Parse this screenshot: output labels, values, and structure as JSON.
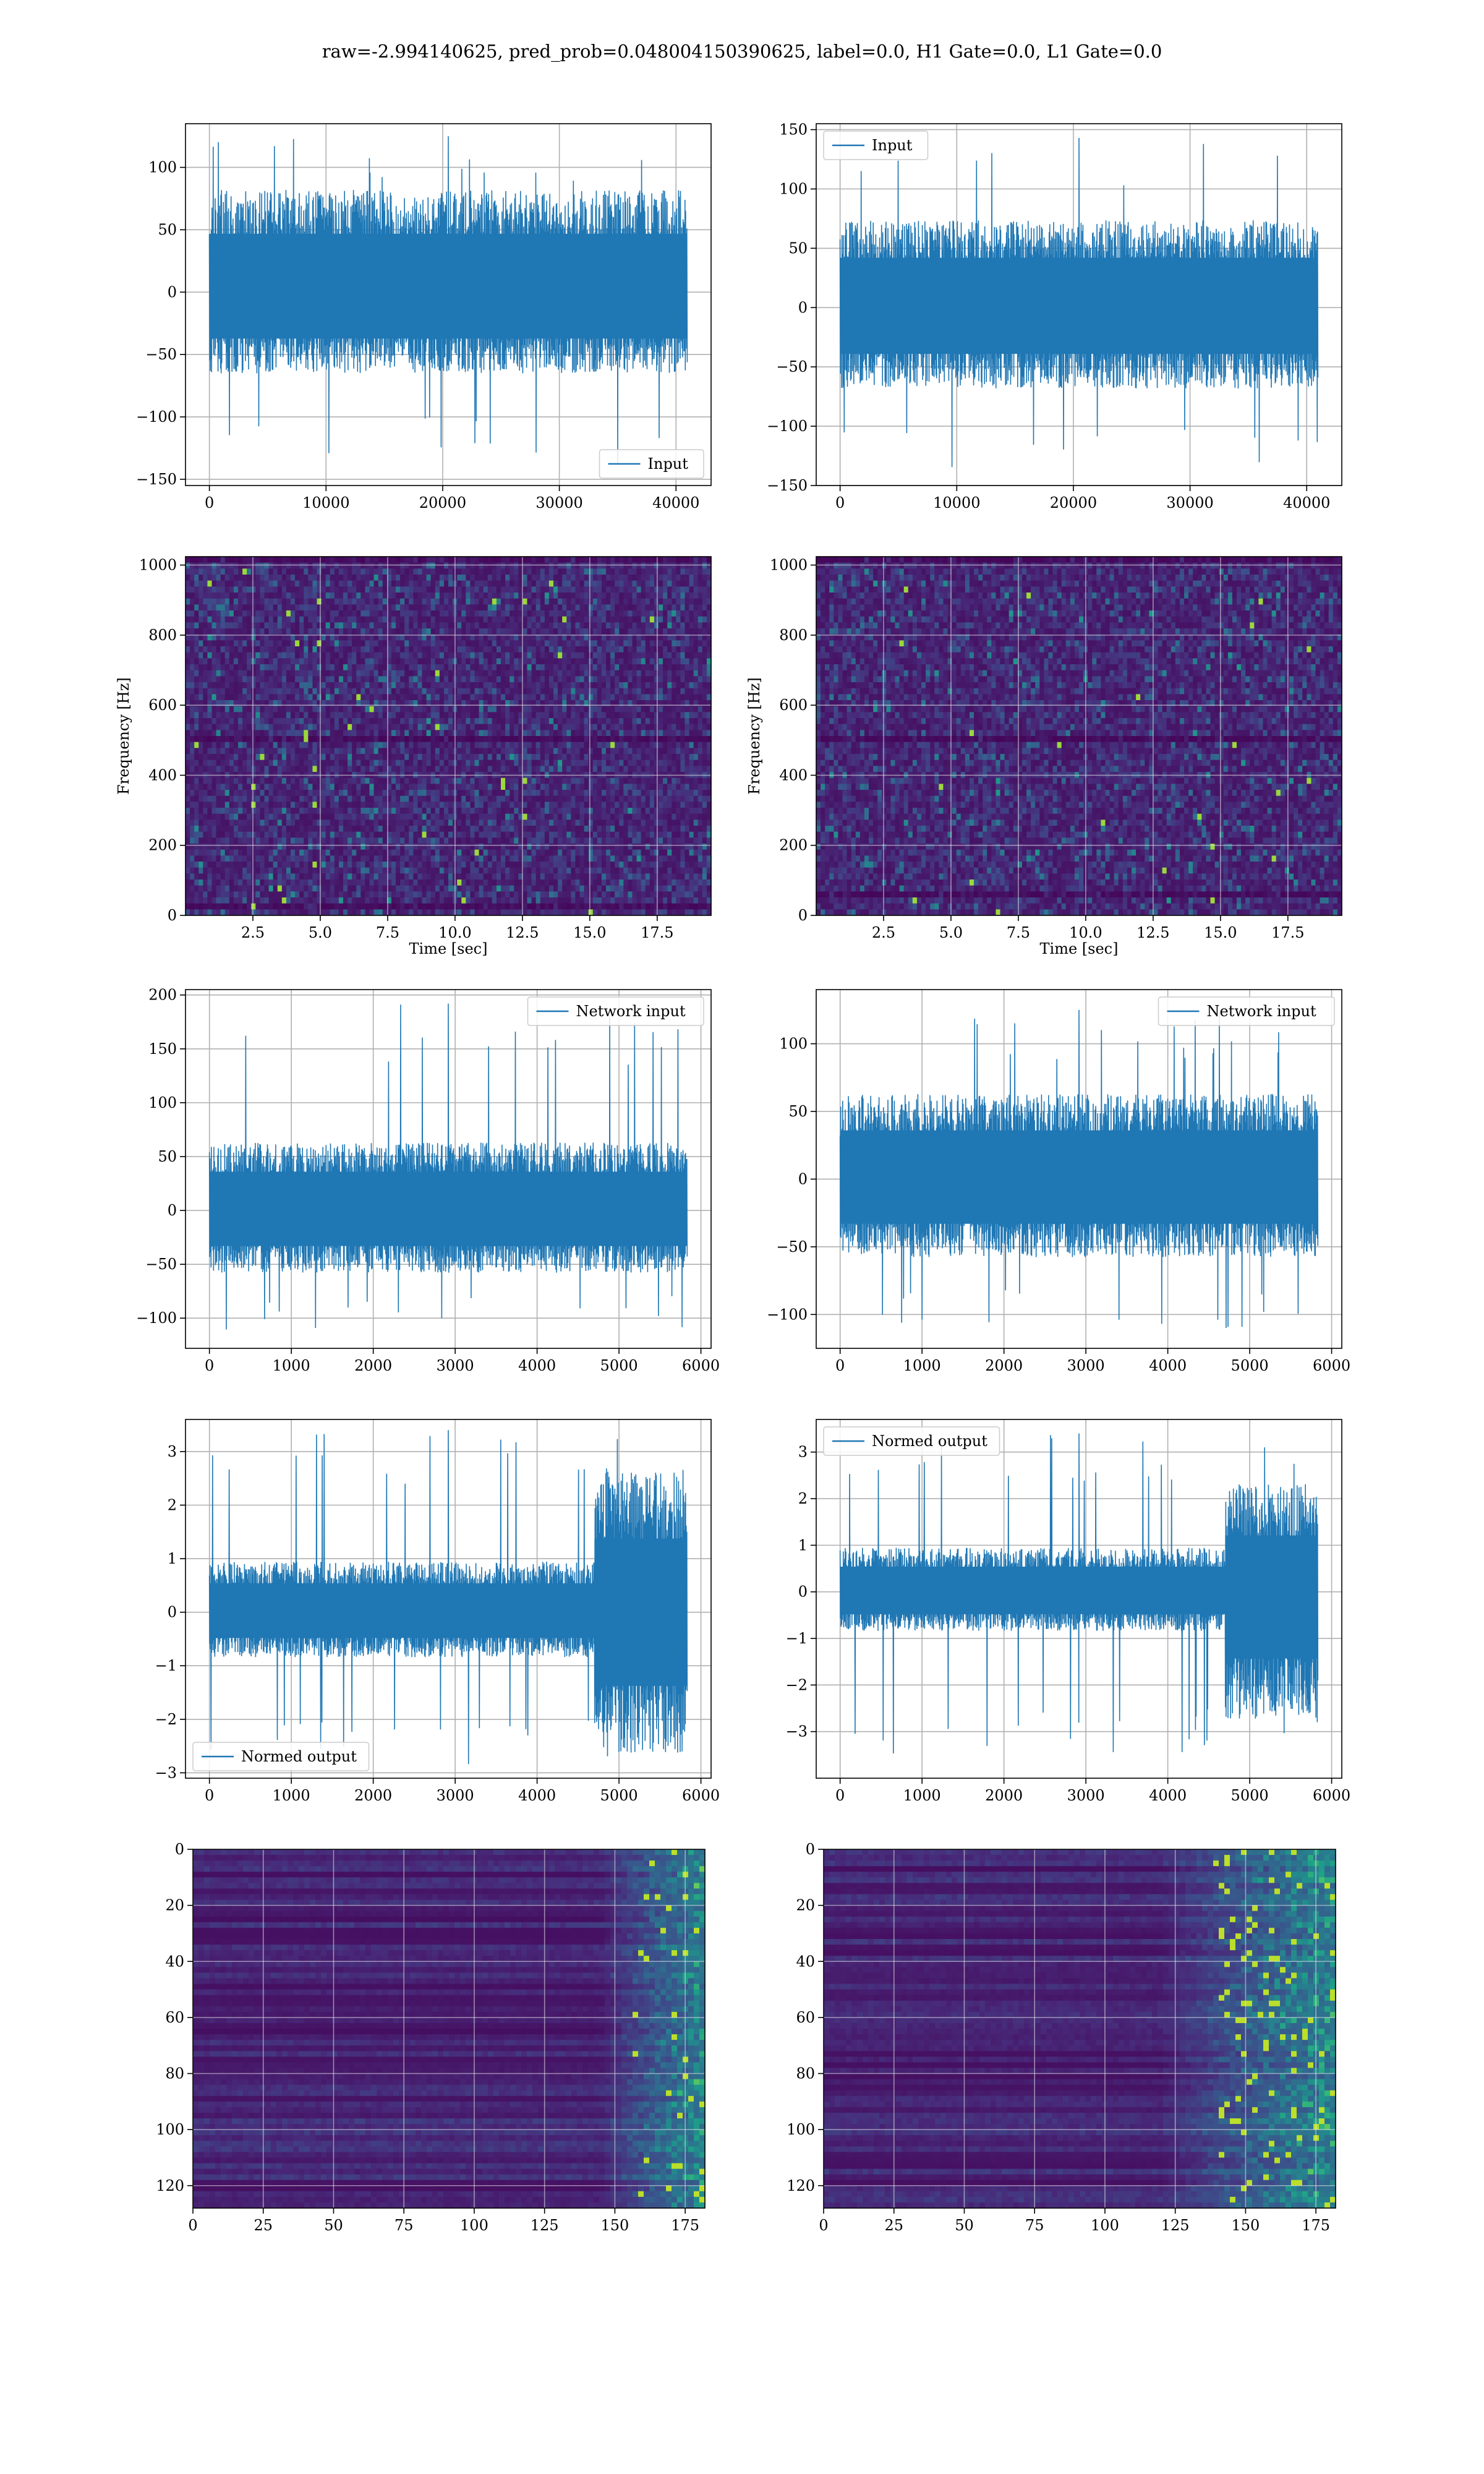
{
  "figure": {
    "title": "raw=-2.994140625, pred_prob=0.048004150390625, label=0.0, H1 Gate=0.0, L1 Gate=0.0"
  },
  "chart_data": [
    {
      "id": "input-h1",
      "type": "line",
      "title": "",
      "xlabel": "",
      "ylabel": "",
      "legend": {
        "label": "Input",
        "placement": "lower-right"
      },
      "series": [
        {
          "name": "Input",
          "color": "#1f77b4"
        }
      ],
      "x_range": [
        0,
        40960
      ],
      "xlim": [
        -2048,
        43008
      ],
      "ylim": [
        -155,
        135
      ],
      "xticks": [
        0,
        10000,
        20000,
        30000,
        40000
      ],
      "xticklabels": [
        "0",
        "10000",
        "20000",
        "30000",
        "40000"
      ],
      "yticks": [
        -150,
        -100,
        -50,
        0,
        50,
        100
      ],
      "yticklabels": [
        "−150",
        "−100",
        "−50",
        "0",
        "50",
        "100"
      ],
      "envelope": {
        "typical_min": -62,
        "typical_max": 78,
        "peak_min": -140,
        "peak_max": 125
      },
      "grid": true
    },
    {
      "id": "input-l1",
      "type": "line",
      "title": "",
      "xlabel": "",
      "ylabel": "",
      "legend": {
        "label": "Input",
        "placement": "upper-left"
      },
      "series": [
        {
          "name": "Input",
          "color": "#1f77b4"
        }
      ],
      "x_range": [
        0,
        40960
      ],
      "xlim": [
        -2048,
        43008
      ],
      "ylim": [
        -150,
        155
      ],
      "xticks": [
        0,
        10000,
        20000,
        30000,
        40000
      ],
      "xticklabels": [
        "0",
        "10000",
        "20000",
        "30000",
        "40000"
      ],
      "yticks": [
        -150,
        -100,
        -50,
        0,
        50,
        100,
        150
      ],
      "yticklabels": [
        "−150",
        "−100",
        "−50",
        "0",
        "50",
        "100",
        "150"
      ],
      "envelope": {
        "typical_min": -65,
        "typical_max": 70,
        "peak_min": -138,
        "peak_max": 143
      },
      "grid": true
    },
    {
      "id": "spectrogram-h1",
      "type": "heatmap",
      "title": "",
      "xlabel": "Time [sec]",
      "ylabel": "Frequency [Hz]",
      "xlim": [
        0,
        19.5
      ],
      "ylim": [
        0,
        1024
      ],
      "xticks": [
        2.5,
        5.0,
        7.5,
        10.0,
        12.5,
        15.0,
        17.5
      ],
      "xticklabels": [
        "2.5",
        "5.0",
        "7.5",
        "10.0",
        "12.5",
        "15.0",
        "17.5"
      ],
      "yticks": [
        0,
        200,
        400,
        600,
        800,
        1000
      ],
      "yticklabels": [
        "0",
        "200",
        "400",
        "600",
        "800",
        "1000"
      ],
      "colormap": "viridis",
      "dark_bands_hz": [
        1012,
        500,
        25
      ],
      "grid": true
    },
    {
      "id": "spectrogram-l1",
      "type": "heatmap",
      "title": "",
      "xlabel": "Time [sec]",
      "ylabel": "Frequency [Hz]",
      "xlim": [
        0,
        19.5
      ],
      "ylim": [
        0,
        1024
      ],
      "xticks": [
        2.5,
        5.0,
        7.5,
        10.0,
        12.5,
        15.0,
        17.5
      ],
      "xticklabels": [
        "2.5",
        "5.0",
        "7.5",
        "10.0",
        "12.5",
        "15.0",
        "17.5"
      ],
      "yticks": [
        0,
        200,
        400,
        600,
        800,
        1000
      ],
      "yticklabels": [
        "0",
        "200",
        "400",
        "600",
        "800",
        "1000"
      ],
      "colormap": "viridis",
      "dark_bands_hz": [
        1012,
        500,
        60
      ],
      "grid": true
    },
    {
      "id": "network-input-h1",
      "type": "line",
      "title": "",
      "xlabel": "",
      "ylabel": "",
      "legend": {
        "label": "Network input",
        "placement": "upper-right"
      },
      "series": [
        {
          "name": "Network input",
          "color": "#1f77b4"
        }
      ],
      "x_range": [
        0,
        5832
      ],
      "xlim": [
        -292,
        6124
      ],
      "ylim": [
        -128,
        205
      ],
      "xticks": [
        0,
        1000,
        2000,
        3000,
        4000,
        5000,
        6000
      ],
      "xticklabels": [
        "0",
        "1000",
        "2000",
        "3000",
        "4000",
        "5000",
        "6000"
      ],
      "yticks": [
        -100,
        -50,
        0,
        50,
        100,
        150,
        200
      ],
      "yticklabels": [
        "−100",
        "−50",
        "0",
        "50",
        "100",
        "150",
        "200"
      ],
      "envelope": {
        "typical_min": -55,
        "typical_max": 60,
        "peak_min": -112,
        "peak_max": 192
      },
      "grid": true
    },
    {
      "id": "network-input-l1",
      "type": "line",
      "title": "",
      "xlabel": "",
      "ylabel": "",
      "legend": {
        "label": "Network input",
        "placement": "upper-right"
      },
      "series": [
        {
          "name": "Network input",
          "color": "#1f77b4"
        }
      ],
      "x_range": [
        0,
        5832
      ],
      "xlim": [
        -292,
        6124
      ],
      "ylim": [
        -125,
        140
      ],
      "xticks": [
        0,
        1000,
        2000,
        3000,
        4000,
        5000,
        6000
      ],
      "xticklabels": [
        "0",
        "1000",
        "2000",
        "3000",
        "4000",
        "5000",
        "6000"
      ],
      "yticks": [
        -100,
        -50,
        0,
        50,
        100
      ],
      "yticklabels": [
        "−100",
        "−50",
        "0",
        "50",
        "100"
      ],
      "envelope": {
        "typical_min": -55,
        "typical_max": 60,
        "peak_min": -115,
        "peak_max": 125
      },
      "grid": true
    },
    {
      "id": "normed-output-h1",
      "type": "line",
      "title": "",
      "xlabel": "",
      "ylabel": "",
      "legend": {
        "label": "Normed output",
        "placement": "lower-left"
      },
      "series": [
        {
          "name": "Normed output",
          "color": "#1f77b4"
        }
      ],
      "x_range": [
        0,
        5832
      ],
      "xlim": [
        -292,
        6124
      ],
      "ylim": [
        -3.1,
        3.6
      ],
      "xticks": [
        0,
        1000,
        2000,
        3000,
        4000,
        5000,
        6000
      ],
      "xticklabels": [
        "0",
        "1000",
        "2000",
        "3000",
        "4000",
        "5000",
        "6000"
      ],
      "yticks": [
        -3,
        -2,
        -1,
        0,
        1,
        2,
        3
      ],
      "yticklabels": [
        "−3",
        "−2",
        "−1",
        "0",
        "1",
        "2",
        "3"
      ],
      "envelope": {
        "typical_min": -0.8,
        "typical_max": 0.9,
        "burst_from_x": 4700,
        "burst_min": -2.5,
        "burst_max": 2.5,
        "peak_min": -2.85,
        "peak_max": 3.4
      },
      "grid": true
    },
    {
      "id": "normed-output-l1",
      "type": "line",
      "title": "",
      "xlabel": "",
      "ylabel": "",
      "legend": {
        "label": "Normed output",
        "placement": "upper-left"
      },
      "series": [
        {
          "name": "Normed output",
          "color": "#1f77b4"
        }
      ],
      "x_range": [
        0,
        5832
      ],
      "xlim": [
        -292,
        6124
      ],
      "ylim": [
        -4.0,
        3.7
      ],
      "xticks": [
        0,
        1000,
        2000,
        3000,
        4000,
        5000,
        6000
      ],
      "xticklabels": [
        "0",
        "1000",
        "2000",
        "3000",
        "4000",
        "5000",
        "6000"
      ],
      "yticks": [
        -3,
        -2,
        -1,
        0,
        1,
        2,
        3
      ],
      "yticklabels": [
        "−3",
        "−2",
        "−1",
        "0",
        "1",
        "2",
        "3"
      ],
      "envelope": {
        "typical_min": -0.8,
        "typical_max": 0.9,
        "burst_from_x": 4700,
        "burst_min": -2.6,
        "burst_max": 2.2,
        "peak_min": -3.5,
        "peak_max": 3.4
      },
      "grid": true
    },
    {
      "id": "feature-map-h1",
      "type": "heatmap",
      "title": "",
      "xlabel": "",
      "ylabel": "",
      "xlim": [
        0,
        182
      ],
      "ylim": [
        128,
        0
      ],
      "xticks": [
        0,
        25,
        50,
        75,
        100,
        125,
        150,
        175
      ],
      "xticklabels": [
        "0",
        "25",
        "50",
        "75",
        "100",
        "125",
        "150",
        "175"
      ],
      "yticks": [
        0,
        20,
        40,
        60,
        80,
        100,
        120
      ],
      "yticklabels": [
        "0",
        "20",
        "40",
        "60",
        "80",
        "100",
        "120"
      ],
      "colormap": "viridis",
      "active_region_from_x": 145,
      "grid": true
    },
    {
      "id": "feature-map-l1",
      "type": "heatmap",
      "title": "",
      "xlabel": "",
      "ylabel": "",
      "xlim": [
        0,
        182
      ],
      "ylim": [
        128,
        0
      ],
      "xticks": [
        0,
        25,
        50,
        75,
        100,
        125,
        150,
        175
      ],
      "xticklabels": [
        "0",
        "25",
        "50",
        "75",
        "100",
        "125",
        "150",
        "175"
      ],
      "yticks": [
        0,
        20,
        40,
        60,
        80,
        100,
        120
      ],
      "yticklabels": [
        "0",
        "20",
        "40",
        "60",
        "80",
        "100",
        "120"
      ],
      "colormap": "viridis",
      "active_region_from_x": 120,
      "grid": true
    }
  ]
}
